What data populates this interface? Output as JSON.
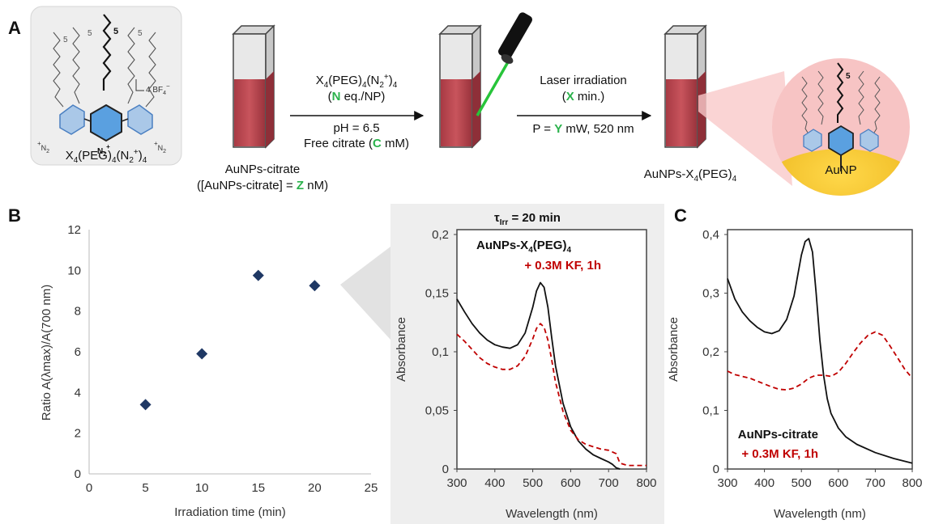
{
  "panel_labels": {
    "a": "A",
    "b": "B",
    "c": "C"
  },
  "scheme": {
    "molecule_bf4": "4 BF",
    "molecule_bf4_sup": "4",
    "molecule_bf4_charge": "−",
    "molecule_repeat": "5",
    "molecule_n2": "N",
    "molecule_n2_sub": "2",
    "molecule_n2_charge": "+",
    "molecule_name": {
      "p1": "X",
      "s1": "4",
      "p2": "(PEG)",
      "s2": "4",
      "p3": "(N",
      "s3": "2",
      "sup3": "+",
      "p4": ")",
      "s4": "4"
    },
    "cuvette1_label_1": "AuNPs-citrate",
    "cuvette1_label_2": "([AuNPs-citrate] = ",
    "cuvette1_label_2_var": "Z",
    "cuvette1_label_2_end": " nM)",
    "arrow1_top_1": {
      "p1": "X",
      "s1": "4",
      "p2": "(PEG)",
      "s2": "4",
      "p3": "(N",
      "s3": "2",
      "sup3": "+",
      "p4": ")",
      "s4": "4"
    },
    "arrow1_top_2_pre": "(",
    "arrow1_top_2_var": "N",
    "arrow1_top_2_post": " eq./NP)",
    "arrow1_bottom_1": "pH = 6.5",
    "arrow1_bottom_2_pre": "Free citrate (",
    "arrow1_bottom_2_var": "C",
    "arrow1_bottom_2_post": " mM)",
    "arrow2_top_1": "Laser irradiation",
    "arrow2_top_2_pre": "(",
    "arrow2_top_2_var": "X",
    "arrow2_top_2_post": " min.)",
    "arrow2_bottom_pre": "P = ",
    "arrow2_bottom_var": "Y",
    "arrow2_bottom_post": " mW, 520 nm",
    "cuvette3_label": {
      "p1": "AuNPs-X",
      "s1": "4",
      "p2": "(PEG)",
      "s2": "4"
    },
    "particle_label": "AuNP",
    "colors": {
      "variable": "#2bb24c",
      "sample": "#c1484f",
      "gold": "#f2b705",
      "halo": "#f7c4c4",
      "ring": "#4a7fc1"
    }
  },
  "chart_data": [
    {
      "type": "scatter",
      "panel": "B",
      "x": [
        5,
        10,
        15,
        20
      ],
      "y": [
        3.4,
        5.9,
        9.75,
        9.25
      ],
      "xlabel": "Irradiation time (min)",
      "ylabel": "Ratio A(λmax)/A(700 nm)",
      "xlim": [
        0,
        25
      ],
      "ylim": [
        0,
        12
      ],
      "xticks": [
        "0",
        "5",
        "10",
        "15",
        "20",
        "25"
      ],
      "yticks": [
        "0",
        "2",
        "4",
        "6",
        "8",
        "10",
        "12"
      ],
      "marker_color": "#1f3864"
    },
    {
      "type": "line",
      "panel": "B inset",
      "title_pre": "τ",
      "title_sub": "Irr",
      "title_post": " = 20 min",
      "xlabel": "Wavelength (nm)",
      "ylabel": "Absorbance",
      "xlim": [
        300,
        800
      ],
      "ylim": [
        0,
        0.2
      ],
      "xticks": [
        "300",
        "400",
        "500",
        "600",
        "700",
        "800"
      ],
      "yticks": [
        "0",
        "0,05",
        "0,1",
        "0,15",
        "0,2"
      ],
      "legend": [
        {
          "text_pre": "AuNPs-X",
          "text_sub": "4",
          "text_mid": "(PEG)",
          "text_sub2": "4",
          "color": "#111111"
        },
        {
          "text_pre": "+ 0.3M KF, 1h",
          "color": "#c00000"
        }
      ],
      "series": [
        {
          "style": "solid",
          "color": "#111111",
          "x": [
            300,
            320,
            340,
            360,
            380,
            400,
            420,
            440,
            460,
            480,
            500,
            510,
            520,
            530,
            540,
            550,
            560,
            580,
            600,
            620,
            640,
            660,
            680,
            700,
            710,
            720,
            730
          ],
          "y": [
            0.145,
            0.134,
            0.124,
            0.116,
            0.11,
            0.106,
            0.104,
            0.103,
            0.106,
            0.116,
            0.138,
            0.152,
            0.159,
            0.155,
            0.138,
            0.112,
            0.088,
            0.056,
            0.036,
            0.024,
            0.017,
            0.012,
            0.009,
            0.006,
            0.004,
            0.001,
            0
          ]
        },
        {
          "style": "dashed",
          "color": "#c00000",
          "x": [
            300,
            320,
            340,
            360,
            380,
            400,
            420,
            440,
            460,
            480,
            500,
            510,
            520,
            530,
            540,
            550,
            560,
            580,
            600,
            620,
            640,
            660,
            680,
            700,
            720,
            730,
            750,
            780,
            800
          ],
          "y": [
            0.115,
            0.109,
            0.102,
            0.095,
            0.09,
            0.087,
            0.085,
            0.085,
            0.088,
            0.096,
            0.111,
            0.12,
            0.124,
            0.121,
            0.11,
            0.093,
            0.074,
            0.049,
            0.033,
            0.025,
            0.021,
            0.019,
            0.017,
            0.016,
            0.013,
            0.005,
            0.003,
            0.003,
            0.003
          ]
        }
      ]
    },
    {
      "type": "line",
      "panel": "C",
      "xlabel": "Wavelength (nm)",
      "ylabel": "Absorbance",
      "xlim": [
        300,
        800
      ],
      "ylim": [
        0,
        0.4
      ],
      "xticks": [
        "300",
        "400",
        "500",
        "600",
        "700",
        "800"
      ],
      "yticks": [
        "0",
        "0,1",
        "0,2",
        "0,3",
        "0,4"
      ],
      "legend": [
        {
          "text_pre": "AuNPs-citrate",
          "color": "#111111"
        },
        {
          "text_pre": "+ 0.3M KF, 1h",
          "color": "#c00000"
        }
      ],
      "series": [
        {
          "style": "solid",
          "color": "#111111",
          "x": [
            300,
            320,
            340,
            360,
            380,
            400,
            420,
            440,
            460,
            480,
            490,
            500,
            510,
            520,
            530,
            540,
            550,
            560,
            570,
            580,
            600,
            620,
            650,
            700,
            750,
            800
          ],
          "y": [
            0.325,
            0.29,
            0.268,
            0.253,
            0.242,
            0.234,
            0.231,
            0.236,
            0.255,
            0.295,
            0.33,
            0.365,
            0.388,
            0.393,
            0.37,
            0.3,
            0.22,
            0.16,
            0.12,
            0.095,
            0.07,
            0.055,
            0.042,
            0.028,
            0.018,
            0.01
          ]
        },
        {
          "style": "dashed",
          "color": "#c00000",
          "x": [
            300,
            320,
            340,
            360,
            380,
            400,
            420,
            440,
            460,
            480,
            500,
            520,
            540,
            560,
            580,
            600,
            620,
            640,
            660,
            680,
            700,
            720,
            740,
            760,
            780,
            800
          ],
          "y": [
            0.167,
            0.161,
            0.158,
            0.155,
            0.15,
            0.145,
            0.14,
            0.136,
            0.135,
            0.138,
            0.145,
            0.155,
            0.16,
            0.16,
            0.158,
            0.165,
            0.18,
            0.198,
            0.215,
            0.228,
            0.234,
            0.228,
            0.21,
            0.19,
            0.17,
            0.155
          ]
        }
      ]
    }
  ]
}
